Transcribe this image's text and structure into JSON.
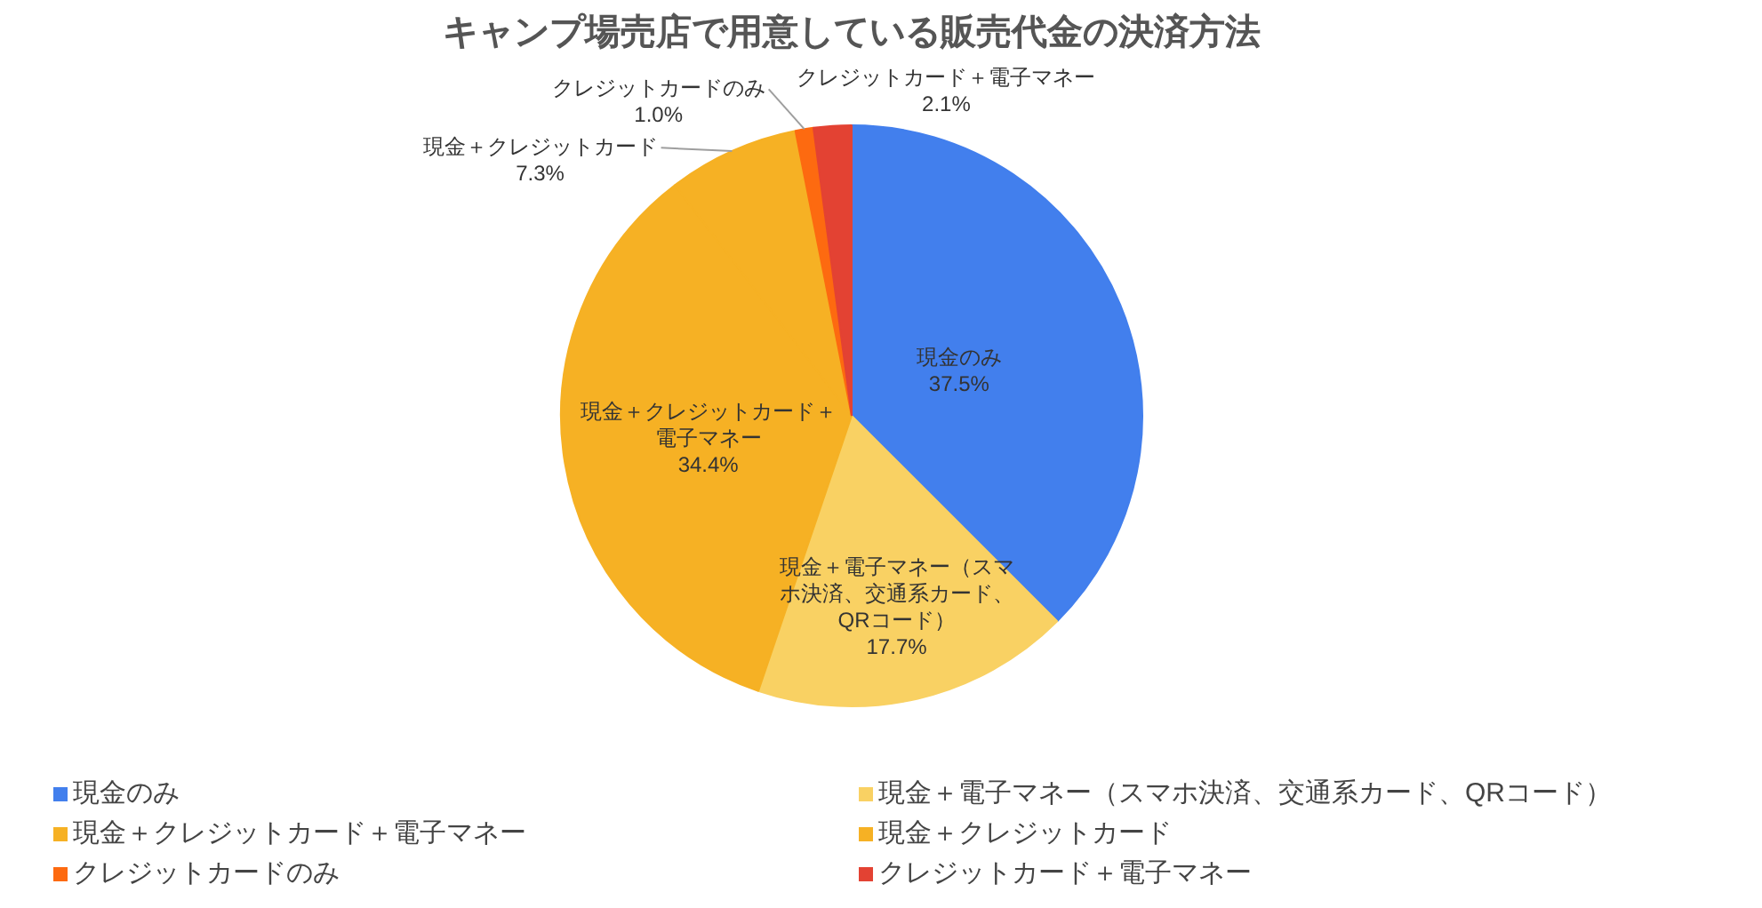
{
  "chart_data": {
    "type": "pie",
    "title": "キャンプ場売店で用意している販売代金の決済方法",
    "categories": [
      "現金のみ",
      "現金＋電子マネー（スマホ決済、交通系カード、QRコード）",
      "現金＋クレジットカード＋電子マネー",
      "現金＋クレジットカード",
      "クレジットカードのみ",
      "クレジットカード＋電子マネー"
    ],
    "values": [
      37.5,
      17.7,
      34.4,
      7.3,
      1.0,
      2.1
    ],
    "colors": [
      "#427fed",
      "#f9d163",
      "#f6b124",
      "#f6b124",
      "#fd6a10",
      "#e34233"
    ],
    "value_labels": [
      "37.5%",
      "17.7%",
      "34.4%",
      "7.3%",
      "1.0%",
      "2.1%"
    ],
    "legend": "bottom"
  }
}
